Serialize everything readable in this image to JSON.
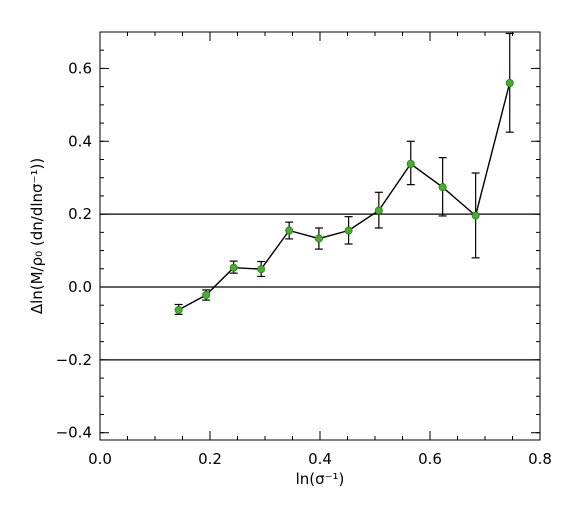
{
  "chart_data": {
    "type": "scatter",
    "xlabel": "ln(σ⁻¹)",
    "ylabel": "Δln(M/ρ₀ (dn/dlnσ⁻¹))",
    "xlim": [
      0.0,
      0.8
    ],
    "ylim": [
      -0.42,
      0.7
    ],
    "x_ticks": [
      0.0,
      0.2,
      0.4,
      0.6,
      0.8
    ],
    "x_tick_labels": [
      "0.0",
      "0.2",
      "0.4",
      "0.6",
      "0.8"
    ],
    "y_ticks": [
      -0.4,
      -0.2,
      0.0,
      0.2,
      0.4,
      0.6
    ],
    "y_tick_labels": [
      "−0.4",
      "−0.2",
      "0.0",
      "0.2",
      "0.4",
      "0.6"
    ],
    "reference_lines_y": [
      0.2,
      0.0,
      -0.2
    ],
    "marker_color": "#44b02c",
    "line_color": "#000000",
    "grid": false,
    "series": [
      {
        "x": [
          0.143,
          0.193,
          0.243,
          0.293,
          0.344,
          0.398,
          0.452,
          0.507,
          0.565,
          0.623,
          0.683,
          0.745
        ],
        "y": [
          -0.063,
          -0.022,
          0.053,
          0.049,
          0.155,
          0.133,
          0.155,
          0.21,
          0.338,
          0.274,
          0.196,
          0.56
        ],
        "err_low": [
          -0.075,
          -0.036,
          0.038,
          0.029,
          0.132,
          0.104,
          0.118,
          0.162,
          0.281,
          0.195,
          0.08,
          0.425
        ],
        "err_high": [
          -0.048,
          -0.008,
          0.071,
          0.07,
          0.178,
          0.162,
          0.193,
          0.26,
          0.4,
          0.355,
          0.313,
          0.696
        ]
      }
    ]
  }
}
